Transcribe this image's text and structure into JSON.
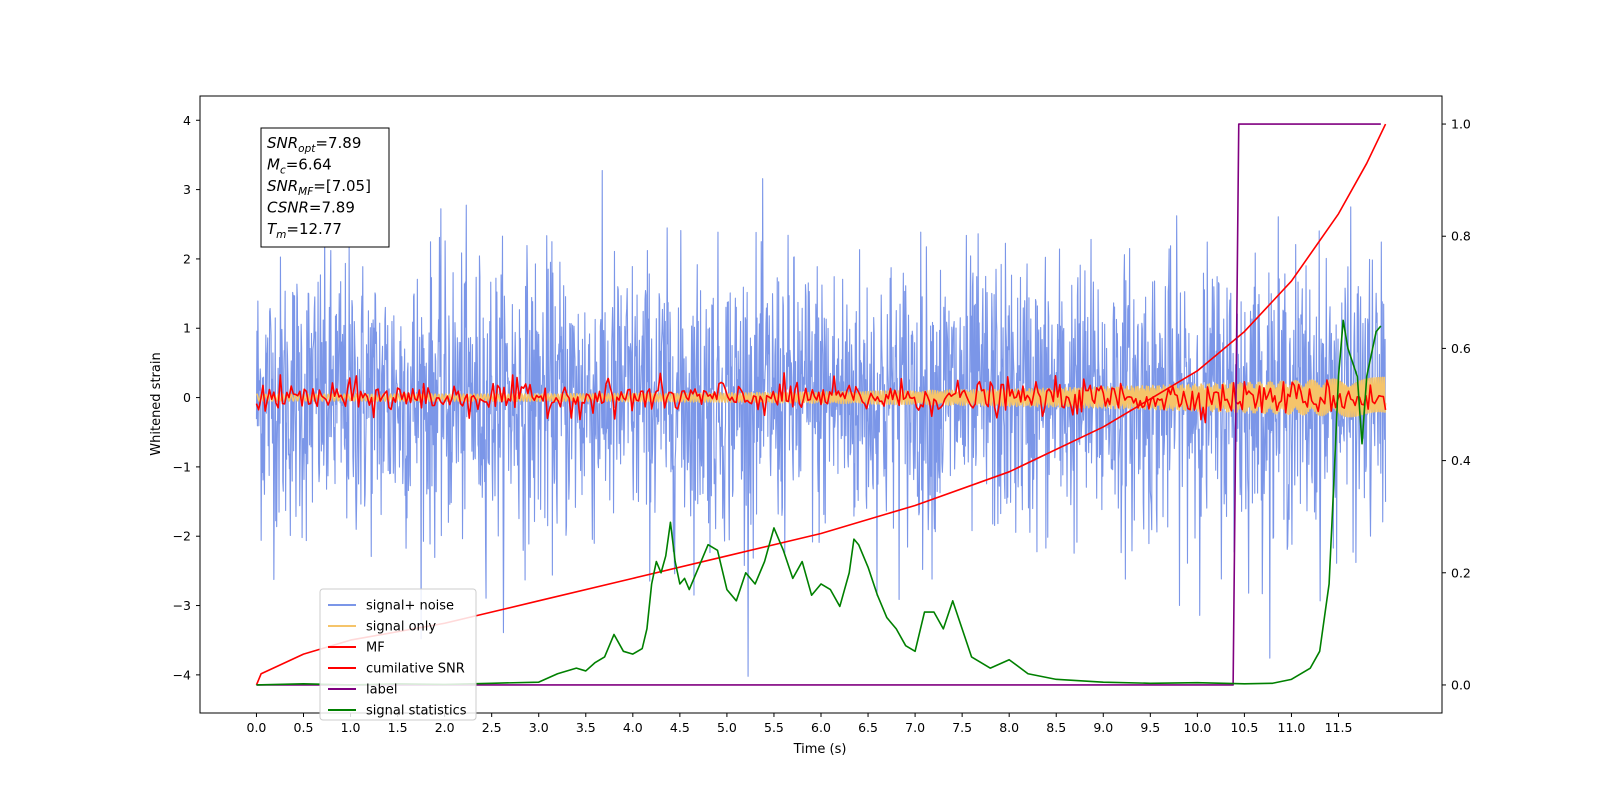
{
  "chart_data": {
    "type": "line",
    "title": "",
    "xlabel": "Time (s)",
    "ylabel": "Whitened strain",
    "y2label": "",
    "xlim": [
      -0.6,
      12.6
    ],
    "ylim": [
      -4.55,
      4.35
    ],
    "y2lim": [
      -0.05,
      1.05
    ],
    "grid": false,
    "legend_position": "lower-left",
    "x_ticks": [
      "0.0",
      "0.5",
      "1.0",
      "1.5",
      "2.0",
      "2.5",
      "3.0",
      "3.5",
      "4.0",
      "4.5",
      "5.0",
      "5.5",
      "6.0",
      "6.5",
      "7.0",
      "7.5",
      "8.0",
      "8.5",
      "9.0",
      "9.5",
      "10.0",
      "10.5",
      "11.0",
      "11.5"
    ],
    "y_ticks": [
      "4",
      "3",
      "2",
      "1",
      "0",
      "−1",
      "−2",
      "−3",
      "−4"
    ],
    "y2_ticks": [
      "1.0",
      "0.8",
      "0.6",
      "0.4",
      "0.2",
      "0.0"
    ],
    "annotation": {
      "lines": [
        {
          "base": "SNR",
          "sub": "opt",
          "value": "=7.89"
        },
        {
          "base": "M",
          "sub": "c",
          "value": "=6.64"
        },
        {
          "base": "SNR",
          "sub": "MF",
          "value": "=[7.05]"
        },
        {
          "base": "CSNR",
          "sub": "",
          "value": "=7.89"
        },
        {
          "base": "T",
          "sub": "m",
          "value": "=12.77"
        }
      ]
    },
    "series": [
      {
        "name": "signal+ noise",
        "color": "#7b96e8",
        "axis": "left",
        "kind": "noise",
        "std": 1.0,
        "x_range": [
          0.0,
          12.0
        ]
      },
      {
        "name": "signal only",
        "color": "#f5c46a",
        "axis": "left",
        "kind": "chirp",
        "x_range": [
          0.0,
          12.0
        ],
        "amplitude_start": 0.05,
        "amplitude_end": 0.3
      },
      {
        "name": "MF",
        "color": "#ff0000",
        "axis": "left",
        "kind": "noise",
        "std": 0.12,
        "x_range": [
          0.0,
          12.0
        ]
      },
      {
        "name": "cumilative SNR",
        "color": "#ff0000",
        "axis": "right",
        "x": [
          0.0,
          0.05,
          0.5,
          1.0,
          2.0,
          3.0,
          4.0,
          5.0,
          6.0,
          7.0,
          8.0,
          9.0,
          9.5,
          10.0,
          10.5,
          11.0,
          11.5,
          11.8,
          12.0
        ],
        "y": [
          0.0,
          0.02,
          0.055,
          0.08,
          0.11,
          0.15,
          0.19,
          0.23,
          0.27,
          0.32,
          0.38,
          0.46,
          0.51,
          0.56,
          0.63,
          0.72,
          0.84,
          0.93,
          1.0
        ]
      },
      {
        "name": "label",
        "color": "#800080",
        "axis": "right",
        "x": [
          0.0,
          10.38,
          10.44,
          11.95
        ],
        "y": [
          0.0,
          0.0,
          1.0,
          1.0
        ]
      },
      {
        "name": "signal statistics",
        "color": "#008000",
        "axis": "right",
        "x": [
          0.0,
          0.5,
          1.0,
          1.5,
          2.0,
          2.5,
          3.0,
          3.2,
          3.4,
          3.5,
          3.6,
          3.7,
          3.8,
          3.9,
          4.0,
          4.1,
          4.15,
          4.2,
          4.25,
          4.3,
          4.35,
          4.4,
          4.45,
          4.5,
          4.55,
          4.6,
          4.7,
          4.8,
          4.9,
          5.0,
          5.1,
          5.2,
          5.3,
          5.4,
          5.5,
          5.6,
          5.7,
          5.8,
          5.9,
          6.0,
          6.1,
          6.2,
          6.3,
          6.35,
          6.4,
          6.5,
          6.6,
          6.7,
          6.8,
          6.9,
          7.0,
          7.1,
          7.2,
          7.3,
          7.4,
          7.5,
          7.6,
          7.8,
          8.0,
          8.2,
          8.5,
          9.0,
          9.5,
          10.0,
          10.5,
          10.8,
          11.0,
          11.2,
          11.3,
          11.4,
          11.45,
          11.5,
          11.55,
          11.6,
          11.7,
          11.75,
          11.8,
          11.9,
          11.95
        ],
        "y": [
          0.0,
          0.002,
          0.0,
          0.002,
          0.001,
          0.003,
          0.005,
          0.02,
          0.03,
          0.025,
          0.04,
          0.05,
          0.09,
          0.06,
          0.055,
          0.065,
          0.1,
          0.18,
          0.22,
          0.2,
          0.23,
          0.29,
          0.22,
          0.18,
          0.19,
          0.17,
          0.21,
          0.25,
          0.24,
          0.17,
          0.15,
          0.2,
          0.18,
          0.22,
          0.28,
          0.24,
          0.19,
          0.22,
          0.16,
          0.18,
          0.17,
          0.14,
          0.2,
          0.26,
          0.25,
          0.21,
          0.16,
          0.12,
          0.1,
          0.07,
          0.06,
          0.13,
          0.13,
          0.1,
          0.15,
          0.1,
          0.05,
          0.03,
          0.045,
          0.02,
          0.01,
          0.005,
          0.003,
          0.004,
          0.002,
          0.003,
          0.01,
          0.03,
          0.06,
          0.18,
          0.36,
          0.55,
          0.65,
          0.6,
          0.55,
          0.43,
          0.55,
          0.63,
          0.64
        ]
      }
    ]
  }
}
